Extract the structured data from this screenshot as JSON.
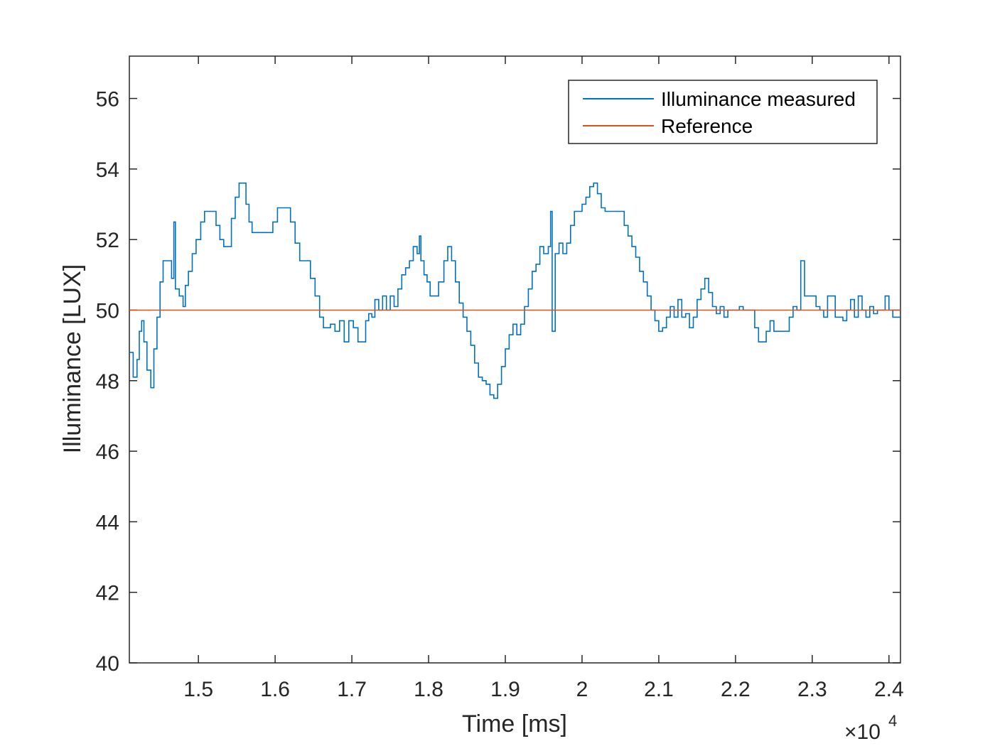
{
  "chart_data": {
    "type": "line",
    "xlabel": "Time [ms]",
    "ylabel": "Illuminance [LUX]",
    "x_exponent_label": "×10",
    "x_exponent_power": "4",
    "x_scale": 10000,
    "xlim": [
      14100,
      24150
    ],
    "ylim": [
      40,
      57.2
    ],
    "x_ticks": [
      15000,
      16000,
      17000,
      18000,
      19000,
      20000,
      21000,
      22000,
      23000,
      24000
    ],
    "x_tick_labels": [
      "1.5",
      "1.6",
      "1.7",
      "1.8",
      "1.9",
      "2",
      "2.1",
      "2.2",
      "2.3",
      "2.4"
    ],
    "y_ticks": [
      40,
      42,
      44,
      46,
      48,
      50,
      52,
      54,
      56
    ],
    "y_tick_labels": [
      "40",
      "42",
      "44",
      "46",
      "48",
      "50",
      "52",
      "54",
      "56"
    ],
    "grid": false,
    "legend_position": "top-right",
    "series": [
      {
        "name": "Illuminance measured",
        "color": "#0072BD",
        "style": "step",
        "points": [
          [
            14100,
            48.8
          ],
          [
            14150,
            48.1
          ],
          [
            14200,
            48.6
          ],
          [
            14230,
            49.4
          ],
          [
            14260,
            49.7
          ],
          [
            14290,
            49.1
          ],
          [
            14330,
            48.3
          ],
          [
            14380,
            47.8
          ],
          [
            14420,
            48.9
          ],
          [
            14460,
            49.8
          ],
          [
            14500,
            50.8
          ],
          [
            14540,
            51.4
          ],
          [
            14600,
            51.4
          ],
          [
            14650,
            50.9
          ],
          [
            14680,
            52.5
          ],
          [
            14700,
            50.6
          ],
          [
            14750,
            50.4
          ],
          [
            14800,
            50.1
          ],
          [
            14830,
            50.7
          ],
          [
            14870,
            51.1
          ],
          [
            14920,
            51.6
          ],
          [
            14970,
            52.0
          ],
          [
            15030,
            52.5
          ],
          [
            15080,
            52.8
          ],
          [
            15130,
            52.8
          ],
          [
            15180,
            52.8
          ],
          [
            15230,
            52.4
          ],
          [
            15280,
            52.0
          ],
          [
            15330,
            51.8
          ],
          [
            15380,
            51.8
          ],
          [
            15430,
            52.6
          ],
          [
            15480,
            53.2
          ],
          [
            15530,
            53.6
          ],
          [
            15580,
            53.6
          ],
          [
            15620,
            53.0
          ],
          [
            15660,
            52.5
          ],
          [
            15700,
            52.2
          ],
          [
            15800,
            52.2
          ],
          [
            15900,
            52.2
          ],
          [
            15970,
            52.5
          ],
          [
            16030,
            52.9
          ],
          [
            16150,
            52.9
          ],
          [
            16200,
            52.5
          ],
          [
            16260,
            51.9
          ],
          [
            16320,
            51.4
          ],
          [
            16400,
            51.4
          ],
          [
            16460,
            50.9
          ],
          [
            16520,
            50.4
          ],
          [
            16580,
            49.8
          ],
          [
            16630,
            49.5
          ],
          [
            16680,
            49.5
          ],
          [
            16720,
            49.6
          ],
          [
            16780,
            49.4
          ],
          [
            16840,
            49.7
          ],
          [
            16900,
            49.1
          ],
          [
            16960,
            49.7
          ],
          [
            17020,
            49.5
          ],
          [
            17080,
            49.1
          ],
          [
            17140,
            49.1
          ],
          [
            17180,
            49.7
          ],
          [
            17220,
            49.9
          ],
          [
            17260,
            49.8
          ],
          [
            17300,
            50.3
          ],
          [
            17350,
            50.0
          ],
          [
            17400,
            50.4
          ],
          [
            17450,
            50.0
          ],
          [
            17500,
            50.4
          ],
          [
            17550,
            50.1
          ],
          [
            17600,
            50.6
          ],
          [
            17650,
            51.0
          ],
          [
            17700,
            51.2
          ],
          [
            17750,
            51.4
          ],
          [
            17800,
            51.8
          ],
          [
            17850,
            51.6
          ],
          [
            17880,
            52.1
          ],
          [
            17900,
            51.4
          ],
          [
            17940,
            51.0
          ],
          [
            17980,
            50.8
          ],
          [
            18020,
            50.4
          ],
          [
            18080,
            50.4
          ],
          [
            18130,
            50.8
          ],
          [
            18200,
            51.4
          ],
          [
            18250,
            51.8
          ],
          [
            18300,
            51.4
          ],
          [
            18350,
            50.8
          ],
          [
            18400,
            50.2
          ],
          [
            18450,
            49.8
          ],
          [
            18500,
            49.4
          ],
          [
            18550,
            49.0
          ],
          [
            18600,
            48.5
          ],
          [
            18650,
            48.1
          ],
          [
            18700,
            48.0
          ],
          [
            18750,
            47.9
          ],
          [
            18800,
            47.6
          ],
          [
            18850,
            47.5
          ],
          [
            18900,
            47.9
          ],
          [
            18950,
            48.4
          ],
          [
            19000,
            48.9
          ],
          [
            19050,
            49.3
          ],
          [
            19100,
            49.6
          ],
          [
            19150,
            49.3
          ],
          [
            19200,
            49.6
          ],
          [
            19250,
            50.1
          ],
          [
            19300,
            50.6
          ],
          [
            19350,
            51.1
          ],
          [
            19400,
            51.3
          ],
          [
            19450,
            51.8
          ],
          [
            19500,
            51.6
          ],
          [
            19560,
            51.8
          ],
          [
            19590,
            52.8
          ],
          [
            19610,
            49.4
          ],
          [
            19650,
            51.6
          ],
          [
            19700,
            51.9
          ],
          [
            19750,
            51.6
          ],
          [
            19800,
            51.9
          ],
          [
            19850,
            52.4
          ],
          [
            19900,
            52.8
          ],
          [
            19950,
            52.8
          ],
          [
            20000,
            53.0
          ],
          [
            20050,
            53.2
          ],
          [
            20100,
            53.5
          ],
          [
            20150,
            53.6
          ],
          [
            20200,
            53.3
          ],
          [
            20250,
            52.9
          ],
          [
            20300,
            52.8
          ],
          [
            20400,
            52.8
          ],
          [
            20500,
            52.8
          ],
          [
            20550,
            52.4
          ],
          [
            20600,
            52.1
          ],
          [
            20650,
            51.8
          ],
          [
            20700,
            51.5
          ],
          [
            20750,
            51.1
          ],
          [
            20800,
            50.8
          ],
          [
            20850,
            50.4
          ],
          [
            20900,
            50.0
          ],
          [
            20950,
            49.7
          ],
          [
            21000,
            49.4
          ],
          [
            21050,
            49.5
          ],
          [
            21100,
            49.8
          ],
          [
            21150,
            50.1
          ],
          [
            21200,
            49.8
          ],
          [
            21250,
            50.3
          ],
          [
            21300,
            49.8
          ],
          [
            21350,
            49.9
          ],
          [
            21400,
            49.5
          ],
          [
            21450,
            49.8
          ],
          [
            21500,
            50.3
          ],
          [
            21550,
            50.6
          ],
          [
            21600,
            50.9
          ],
          [
            21650,
            50.5
          ],
          [
            21700,
            50.1
          ],
          [
            21750,
            49.9
          ],
          [
            21800,
            50.1
          ],
          [
            21850,
            49.8
          ],
          [
            21900,
            50.0
          ],
          [
            21950,
            50.0
          ],
          [
            22000,
            50.0
          ],
          [
            22050,
            50.1
          ],
          [
            22100,
            50.0
          ],
          [
            22150,
            50.0
          ],
          [
            22200,
            50.0
          ],
          [
            22250,
            49.5
          ],
          [
            22300,
            49.1
          ],
          [
            22350,
            49.1
          ],
          [
            22400,
            49.4
          ],
          [
            22450,
            49.7
          ],
          [
            22500,
            49.4
          ],
          [
            22550,
            49.4
          ],
          [
            22600,
            49.4
          ],
          [
            22650,
            49.4
          ],
          [
            22700,
            49.8
          ],
          [
            22750,
            50.1
          ],
          [
            22800,
            50.0
          ],
          [
            22850,
            51.4
          ],
          [
            22900,
            50.4
          ],
          [
            22950,
            50.4
          ],
          [
            23000,
            50.4
          ],
          [
            23050,
            50.1
          ],
          [
            23100,
            50.0
          ],
          [
            23150,
            49.8
          ],
          [
            23200,
            50.4
          ],
          [
            23250,
            50.4
          ],
          [
            23300,
            49.8
          ],
          [
            23350,
            49.8
          ],
          [
            23400,
            49.7
          ],
          [
            23450,
            50.0
          ],
          [
            23500,
            50.3
          ],
          [
            23550,
            49.8
          ],
          [
            23600,
            50.4
          ],
          [
            23650,
            50.0
          ],
          [
            23700,
            49.8
          ],
          [
            23750,
            50.1
          ],
          [
            23800,
            49.9
          ],
          [
            23850,
            50.0
          ],
          [
            23900,
            50.0
          ],
          [
            23950,
            50.4
          ],
          [
            24000,
            50.0
          ],
          [
            24050,
            49.8
          ],
          [
            24100,
            49.8
          ],
          [
            24150,
            49.8
          ]
        ]
      },
      {
        "name": "Reference",
        "color": "#D95319",
        "style": "line",
        "points": [
          [
            14100,
            50
          ],
          [
            24150,
            50
          ]
        ]
      }
    ]
  }
}
